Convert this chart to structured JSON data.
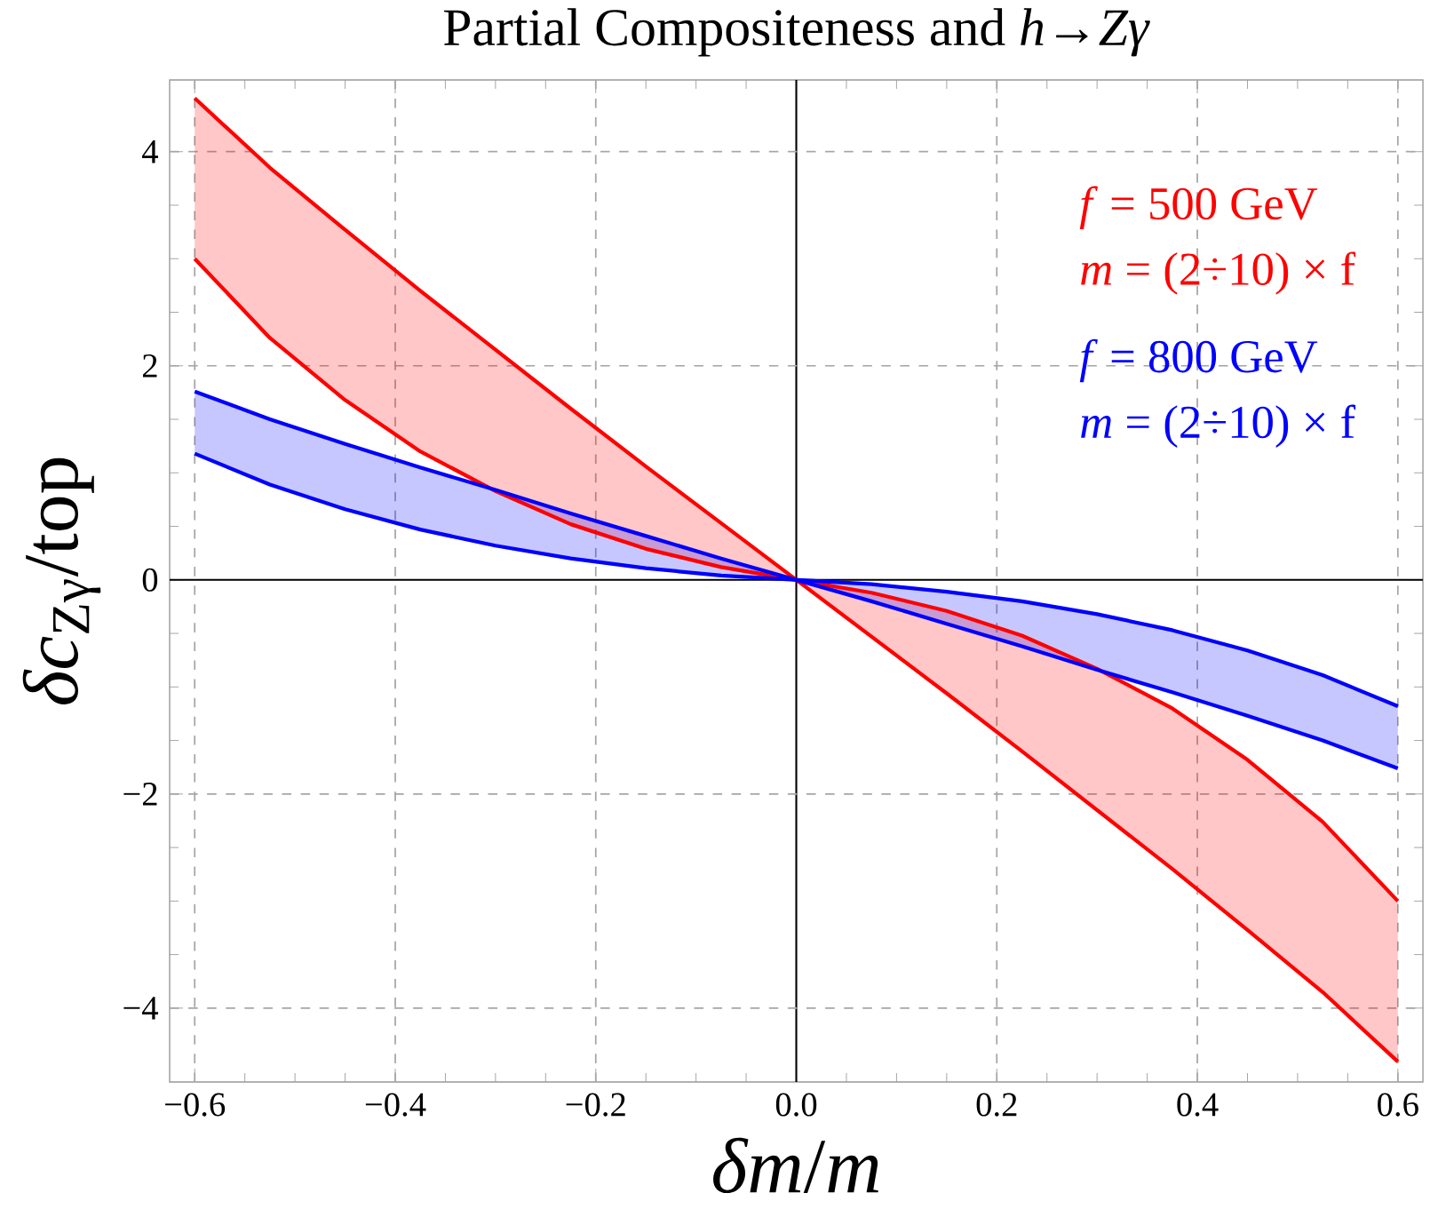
{
  "chart_data": {
    "type": "line",
    "title": "Partial Compositeness and *h*→*Zγ*",
    "xlabel": "*δm*/*m*",
    "ylabel": "*δc*$_{Zγ}$/top",
    "x": [
      -0.6,
      -0.525,
      -0.45,
      -0.375,
      -0.3,
      -0.225,
      -0.15,
      -0.075,
      0,
      0.075,
      0.15,
      0.225,
      0.3,
      0.375,
      0.45,
      0.525,
      0.6
    ],
    "series": [
      {
        "name": "*f* = 500 GeV",
        "type": "area",
        "color": "#ff0000",
        "values": [
          4.5,
          3.85,
          3.27,
          2.7,
          2.15,
          1.6,
          1.06,
          0.53,
          0,
          -0.53,
          -1.06,
          -1.6,
          -2.15,
          -2.7,
          -3.27,
          -3.85,
          -4.5
        ]
      },
      {
        "color": "#ff0000",
        "values": [
          3.0,
          2.26,
          1.68,
          1.2,
          0.83,
          0.52,
          0.29,
          0.12,
          0,
          -0.12,
          -0.29,
          -0.52,
          -0.83,
          -1.2,
          -1.68,
          -2.26,
          -3.0
        ]
      },
      {
        "name": "*f* = 800 GeV",
        "type": "area",
        "color": "#0000ff",
        "values": [
          1.76,
          1.5,
          1.27,
          1.05,
          0.84,
          0.62,
          0.41,
          0.2,
          0,
          -0.2,
          -0.41,
          -0.62,
          -0.84,
          -1.05,
          -1.27,
          -1.5,
          -1.76
        ]
      },
      {
        "color": "#0000ff",
        "values": [
          1.18,
          0.89,
          0.66,
          0.47,
          0.32,
          0.2,
          0.11,
          0.04,
          0,
          -0.04,
          -0.11,
          -0.2,
          -0.32,
          -0.47,
          -0.66,
          -0.89,
          -1.18
        ]
      }
    ],
    "annotations": [
      "*m* = (2÷10) × f",
      "*m* = (2÷10) × f"
    ],
    "xlim": [
      -0.625,
      0.625
    ],
    "ylim": [
      -4.69,
      4.67
    ],
    "xticks": [
      {
        "value": -0.6,
        "label": "−0.6"
      },
      {
        "value": -0.4,
        "label": "−0.4"
      },
      {
        "value": -0.2,
        "label": "−0.2"
      },
      {
        "value": 0,
        "label": "0.0"
      },
      {
        "value": 0.2,
        "label": "0.2"
      },
      {
        "value": 0.4,
        "label": "0.4"
      },
      {
        "value": 0.6,
        "label": "0.6"
      }
    ],
    "yticks": [
      {
        "value": -4,
        "label": "−4"
      },
      {
        "value": -2,
        "label": "−2"
      },
      {
        "value": 0,
        "label": "0"
      },
      {
        "value": 2,
        "label": "2"
      },
      {
        "value": 4,
        "label": "4"
      }
    ],
    "grid": true,
    "legend": "top right",
    "line_style": "solid",
    "marker": "none"
  }
}
